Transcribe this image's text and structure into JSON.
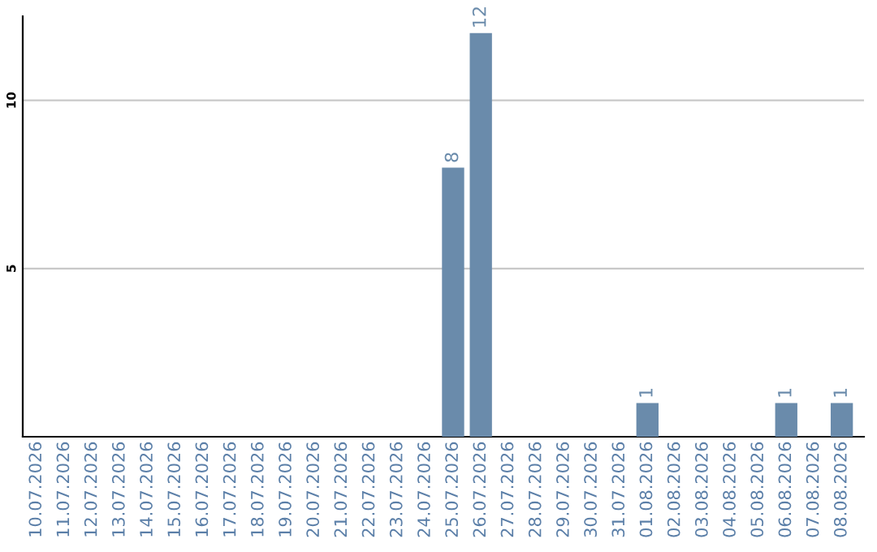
{
  "chart_data": {
    "type": "bar",
    "categories": [
      "10.07.2026",
      "11.07.2026",
      "12.07.2026",
      "13.07.2026",
      "14.07.2026",
      "15.07.2026",
      "16.07.2026",
      "17.07.2026",
      "18.07.2026",
      "19.07.2026",
      "20.07.2026",
      "21.07.2026",
      "22.07.2026",
      "23.07.2026",
      "24.07.2026",
      "25.07.2026",
      "26.07.2026",
      "27.07.2026",
      "28.07.2026",
      "29.07.2026",
      "30.07.2026",
      "31.07.2026",
      "01.08.2026",
      "02.08.2026",
      "03.08.2026",
      "04.08.2026",
      "05.08.2026",
      "06.08.2026",
      "07.08.2026",
      "08.08.2026"
    ],
    "values": [
      0,
      0,
      0,
      0,
      0,
      0,
      0,
      0,
      0,
      0,
      0,
      0,
      0,
      0,
      0,
      8,
      12,
      0,
      0,
      0,
      0,
      0,
      1,
      0,
      0,
      0,
      0,
      1,
      0,
      1
    ],
    "value_labels": [
      null,
      null,
      null,
      null,
      null,
      null,
      null,
      null,
      null,
      null,
      null,
      null,
      null,
      null,
      null,
      "8",
      "12",
      null,
      null,
      null,
      null,
      null,
      "1",
      null,
      null,
      null,
      null,
      "1",
      null,
      "1"
    ],
    "color": "#6a8bab",
    "ylim": [
      0,
      12.5
    ],
    "yticks": [
      5,
      10
    ],
    "grid": "y"
  }
}
